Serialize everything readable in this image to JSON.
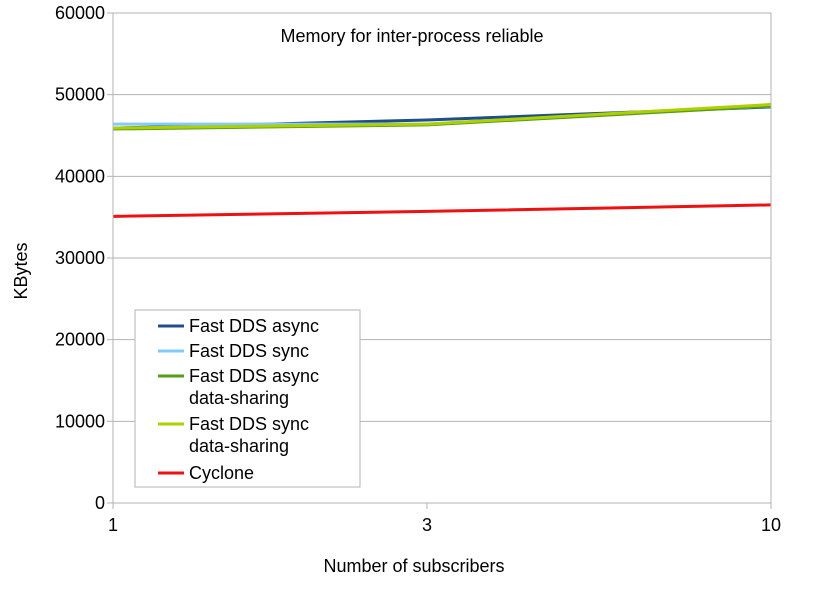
{
  "chart_data": {
    "type": "line",
    "title": "Memory for inter-process reliable",
    "xlabel": "Number of subscribers",
    "ylabel": "KBytes",
    "xscale": "log",
    "x": [
      1,
      3,
      10
    ],
    "xticks": [
      "1",
      "3",
      "10"
    ],
    "ylim": [
      0,
      60000
    ],
    "yticks": [
      "0",
      "10000",
      "20000",
      "30000",
      "40000",
      "50000",
      "60000"
    ],
    "grid": "horizontal",
    "legend_position": "bottom-left",
    "series": [
      {
        "name": "Fast DDS async",
        "color": "#1f4e8c",
        "values": [
          45900,
          46900,
          48500
        ]
      },
      {
        "name": "Fast DDS sync",
        "color": "#83caff",
        "values": [
          46400,
          46400,
          48600
        ]
      },
      {
        "name": "Fast DDS async data-sharing",
        "color": "#579d1c",
        "values": [
          45800,
          46300,
          48600
        ]
      },
      {
        "name": "Fast DDS sync data-sharing",
        "color": "#aecf00",
        "values": [
          45900,
          46400,
          48800
        ]
      },
      {
        "name": "Cyclone",
        "color": "#ee1111",
        "values": [
          35100,
          35700,
          36500
        ]
      }
    ]
  }
}
